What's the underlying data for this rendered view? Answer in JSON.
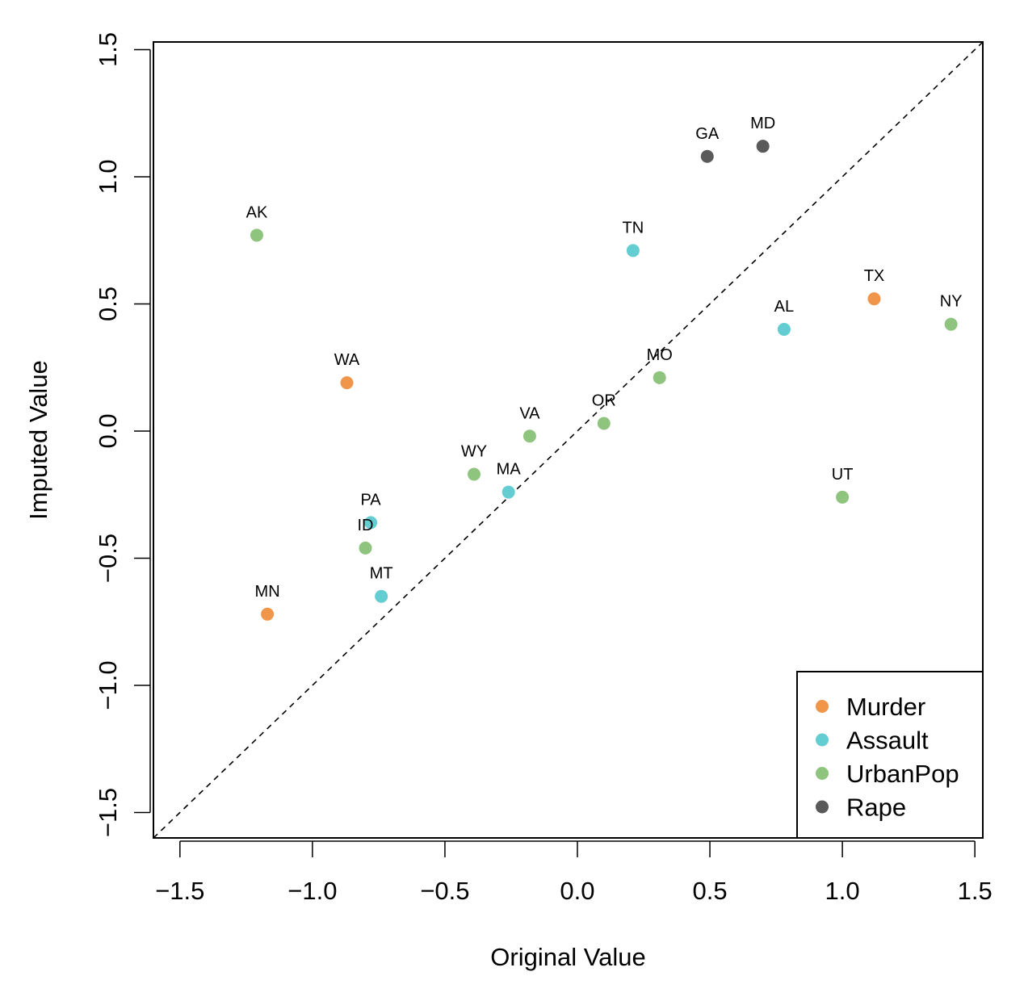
{
  "chart_data": {
    "type": "scatter",
    "title": "",
    "xlabel": "Original Value",
    "ylabel": "Imputed Value",
    "xlim": [
      -1.6,
      1.53
    ],
    "ylim": [
      -1.6,
      1.53
    ],
    "xticks": [
      -1.5,
      -1.0,
      -0.5,
      0.0,
      0.5,
      1.0,
      1.5
    ],
    "xtick_labels": [
      "−1.5",
      "−1.0",
      "−0.5",
      "0.0",
      "0.5",
      "1.0",
      "1.5"
    ],
    "yticks": [
      -1.5,
      -1.0,
      -0.5,
      0.0,
      0.5,
      1.0,
      1.5
    ],
    "ytick_labels": [
      "−1.5",
      "−1.0",
      "−0.5",
      "0.0",
      "0.5",
      "1.0",
      "1.5"
    ],
    "grid": false,
    "reference_line": {
      "type": "identity",
      "style": "dashed",
      "color": "#000000"
    },
    "legend": {
      "position": "bottom-right",
      "entries": [
        {
          "name": "Murder",
          "color": "#F0964A"
        },
        {
          "name": "Assault",
          "color": "#63CDD1"
        },
        {
          "name": "UrbanPop",
          "color": "#8FC47E"
        },
        {
          "name": "Rape",
          "color": "#5A5A5A"
        }
      ]
    },
    "points": [
      {
        "label": "AK",
        "series": "UrbanPop",
        "x": -1.21,
        "y": 0.77
      },
      {
        "label": "GA",
        "series": "Rape",
        "x": 0.49,
        "y": 1.08
      },
      {
        "label": "MD",
        "series": "Rape",
        "x": 0.7,
        "y": 1.12
      },
      {
        "label": "TN",
        "series": "Assault",
        "x": 0.21,
        "y": 0.71
      },
      {
        "label": "TX",
        "series": "Murder",
        "x": 1.12,
        "y": 0.52
      },
      {
        "label": "NY",
        "series": "UrbanPop",
        "x": 1.41,
        "y": 0.42
      },
      {
        "label": "AL",
        "series": "Assault",
        "x": 0.78,
        "y": 0.4
      },
      {
        "label": "WA",
        "series": "Murder",
        "x": -0.87,
        "y": 0.19
      },
      {
        "label": "MO",
        "series": "UrbanPop",
        "x": 0.31,
        "y": 0.21
      },
      {
        "label": "OR",
        "series": "UrbanPop",
        "x": 0.1,
        "y": 0.03
      },
      {
        "label": "VA",
        "series": "UrbanPop",
        "x": -0.18,
        "y": -0.02
      },
      {
        "label": "WY",
        "series": "UrbanPop",
        "x": -0.39,
        "y": -0.17
      },
      {
        "label": "MA",
        "series": "Assault",
        "x": -0.26,
        "y": -0.24
      },
      {
        "label": "UT",
        "series": "UrbanPop",
        "x": 1.0,
        "y": -0.26
      },
      {
        "label": "PA",
        "series": "Assault",
        "x": -0.78,
        "y": -0.36
      },
      {
        "label": "ID",
        "series": "UrbanPop",
        "x": -0.8,
        "y": -0.46
      },
      {
        "label": "MT",
        "series": "Assault",
        "x": -0.74,
        "y": -0.65
      },
      {
        "label": "MN",
        "series": "Murder",
        "x": -1.17,
        "y": -0.72
      }
    ]
  }
}
